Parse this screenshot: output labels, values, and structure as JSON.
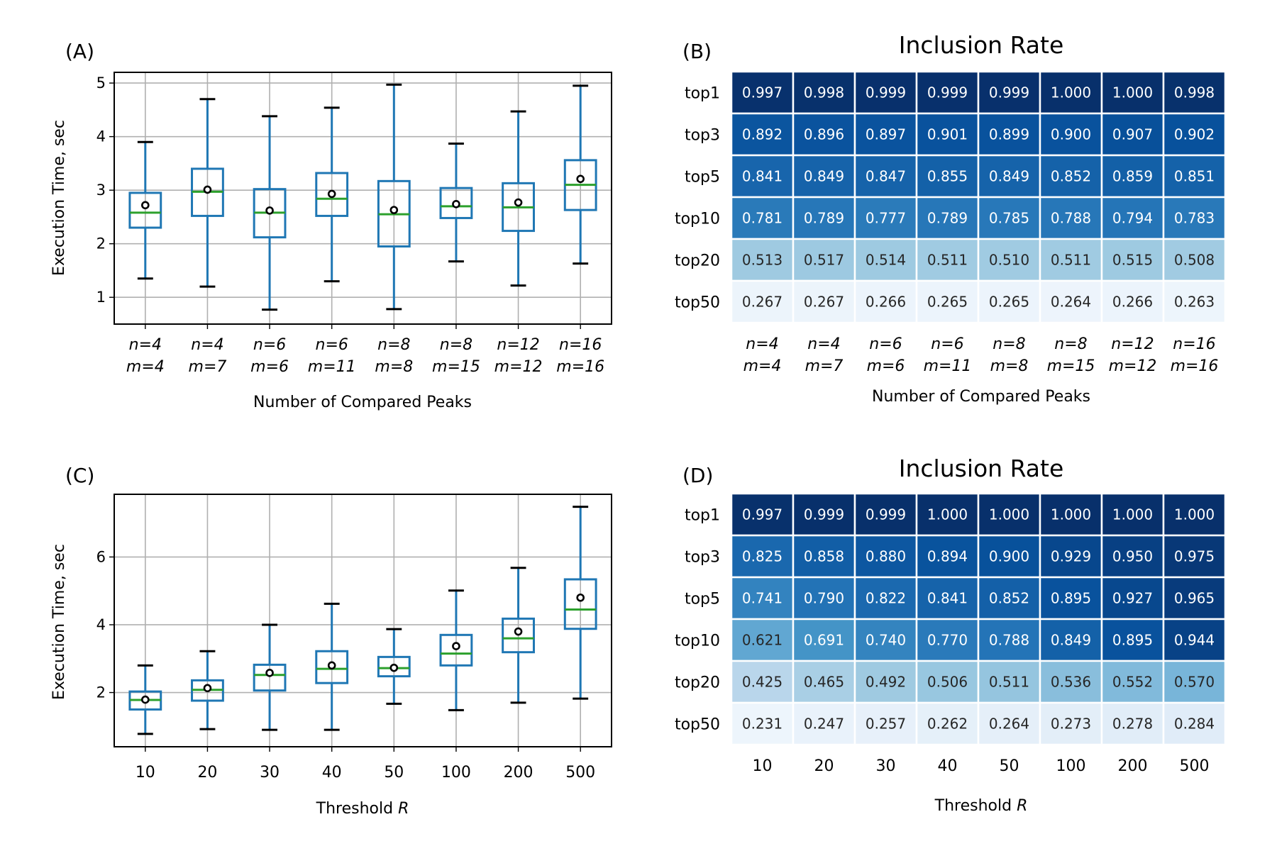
{
  "chart_data": [
    {
      "panel_label": "(A)",
      "type": "box",
      "title": "",
      "xlabel": "Number of Compared Peaks",
      "ylabel": "Execution Time, sec",
      "ylim": [
        0.5,
        5.2
      ],
      "yticks": [
        1,
        2,
        3,
        4,
        5
      ],
      "grid": true,
      "categories": [
        {
          "n": "4",
          "m": "4"
        },
        {
          "n": "4",
          "m": "7"
        },
        {
          "n": "6",
          "m": "6"
        },
        {
          "n": "6",
          "m": "11"
        },
        {
          "n": "8",
          "m": "8"
        },
        {
          "n": "8",
          "m": "15"
        },
        {
          "n": "12",
          "m": "12"
        },
        {
          "n": "16",
          "m": "16"
        }
      ],
      "boxes": [
        {
          "whislo": 1.35,
          "q1": 2.3,
          "med": 2.58,
          "q3": 2.95,
          "whishi": 3.9,
          "mean": 2.72
        },
        {
          "whislo": 1.2,
          "q1": 2.52,
          "med": 2.97,
          "q3": 3.4,
          "whishi": 4.7,
          "mean": 3.01
        },
        {
          "whislo": 0.77,
          "q1": 2.12,
          "med": 2.58,
          "q3": 3.02,
          "whishi": 4.38,
          "mean": 2.62
        },
        {
          "whislo": 1.3,
          "q1": 2.52,
          "med": 2.84,
          "q3": 3.32,
          "whishi": 4.54,
          "mean": 2.93
        },
        {
          "whislo": 0.78,
          "q1": 1.95,
          "med": 2.55,
          "q3": 3.17,
          "whishi": 4.97,
          "mean": 2.63
        },
        {
          "whislo": 1.67,
          "q1": 2.48,
          "med": 2.7,
          "q3": 3.04,
          "whishi": 3.87,
          "mean": 2.74
        },
        {
          "whislo": 1.22,
          "q1": 2.24,
          "med": 2.68,
          "q3": 3.13,
          "whishi": 4.47,
          "mean": 2.77
        },
        {
          "whislo": 1.63,
          "q1": 2.63,
          "med": 3.1,
          "q3": 3.56,
          "whishi": 4.95,
          "mean": 3.21
        }
      ]
    },
    {
      "panel_label": "(B)",
      "type": "heatmap",
      "title": "Inclusion Rate",
      "xlabel": "Number of Compared Peaks",
      "ylabel": "",
      "rows": [
        "top1",
        "top3",
        "top5",
        "top10",
        "top20",
        "top50"
      ],
      "columns": [
        {
          "n": "4",
          "m": "4"
        },
        {
          "n": "4",
          "m": "7"
        },
        {
          "n": "6",
          "m": "6"
        },
        {
          "n": "6",
          "m": "11"
        },
        {
          "n": "8",
          "m": "8"
        },
        {
          "n": "8",
          "m": "15"
        },
        {
          "n": "12",
          "m": "12"
        },
        {
          "n": "16",
          "m": "16"
        }
      ],
      "values": [
        [
          "0.997",
          "0.998",
          "0.999",
          "0.999",
          "0.999",
          "1.000",
          "1.000",
          "0.998"
        ],
        [
          "0.892",
          "0.896",
          "0.897",
          "0.901",
          "0.899",
          "0.900",
          "0.907",
          "0.902"
        ],
        [
          "0.841",
          "0.849",
          "0.847",
          "0.855",
          "0.849",
          "0.852",
          "0.859",
          "0.851"
        ],
        [
          "0.781",
          "0.789",
          "0.777",
          "0.789",
          "0.785",
          "0.788",
          "0.794",
          "0.783"
        ],
        [
          "0.513",
          "0.517",
          "0.514",
          "0.511",
          "0.510",
          "0.511",
          "0.515",
          "0.508"
        ],
        [
          "0.267",
          "0.267",
          "0.266",
          "0.265",
          "0.265",
          "0.264",
          "0.266",
          "0.263"
        ]
      ],
      "colormap": "Blues"
    },
    {
      "panel_label": "(C)",
      "type": "box",
      "title": "",
      "xlabel": "Threshold R",
      "ylabel": "Execution Time, sec",
      "ylim": [
        0.4,
        7.85
      ],
      "yticks": [
        2,
        4,
        6
      ],
      "grid": true,
      "categories": [
        "10",
        "20",
        "30",
        "40",
        "50",
        "100",
        "200",
        "500"
      ],
      "boxes": [
        {
          "whislo": 0.78,
          "q1": 1.5,
          "med": 1.78,
          "q3": 2.03,
          "whishi": 2.8,
          "mean": 1.79
        },
        {
          "whislo": 0.92,
          "q1": 1.76,
          "med": 2.08,
          "q3": 2.36,
          "whishi": 3.22,
          "mean": 2.13
        },
        {
          "whislo": 0.9,
          "q1": 2.06,
          "med": 2.52,
          "q3": 2.82,
          "whishi": 4.0,
          "mean": 2.58
        },
        {
          "whislo": 0.9,
          "q1": 2.28,
          "med": 2.7,
          "q3": 3.22,
          "whishi": 4.62,
          "mean": 2.8
        },
        {
          "whislo": 1.67,
          "q1": 2.48,
          "med": 2.72,
          "q3": 3.05,
          "whishi": 3.87,
          "mean": 2.73
        },
        {
          "whislo": 1.48,
          "q1": 2.8,
          "med": 3.15,
          "q3": 3.7,
          "whishi": 5.01,
          "mean": 3.37
        },
        {
          "whislo": 1.7,
          "q1": 3.19,
          "med": 3.6,
          "q3": 4.18,
          "whishi": 5.68,
          "mean": 3.8
        },
        {
          "whislo": 1.82,
          "q1": 3.88,
          "med": 4.45,
          "q3": 5.34,
          "whishi": 7.48,
          "mean": 4.8
        }
      ]
    },
    {
      "panel_label": "(D)",
      "type": "heatmap",
      "title": "Inclusion Rate",
      "xlabel": "Threshold R",
      "ylabel": "",
      "rows": [
        "top1",
        "top3",
        "top5",
        "top10",
        "top20",
        "top50"
      ],
      "columns": [
        "10",
        "20",
        "30",
        "40",
        "50",
        "100",
        "200",
        "500"
      ],
      "values": [
        [
          "0.997",
          "0.999",
          "0.999",
          "1.000",
          "1.000",
          "1.000",
          "1.000",
          "1.000"
        ],
        [
          "0.825",
          "0.858",
          "0.880",
          "0.894",
          "0.900",
          "0.929",
          "0.950",
          "0.975"
        ],
        [
          "0.741",
          "0.790",
          "0.822",
          "0.841",
          "0.852",
          "0.895",
          "0.927",
          "0.965"
        ],
        [
          "0.621",
          "0.691",
          "0.740",
          "0.770",
          "0.788",
          "0.849",
          "0.895",
          "0.944"
        ],
        [
          "0.425",
          "0.465",
          "0.492",
          "0.506",
          "0.511",
          "0.536",
          "0.552",
          "0.570"
        ],
        [
          "0.231",
          "0.247",
          "0.257",
          "0.262",
          "0.264",
          "0.273",
          "0.278",
          "0.284"
        ]
      ],
      "colormap": "Blues"
    }
  ]
}
